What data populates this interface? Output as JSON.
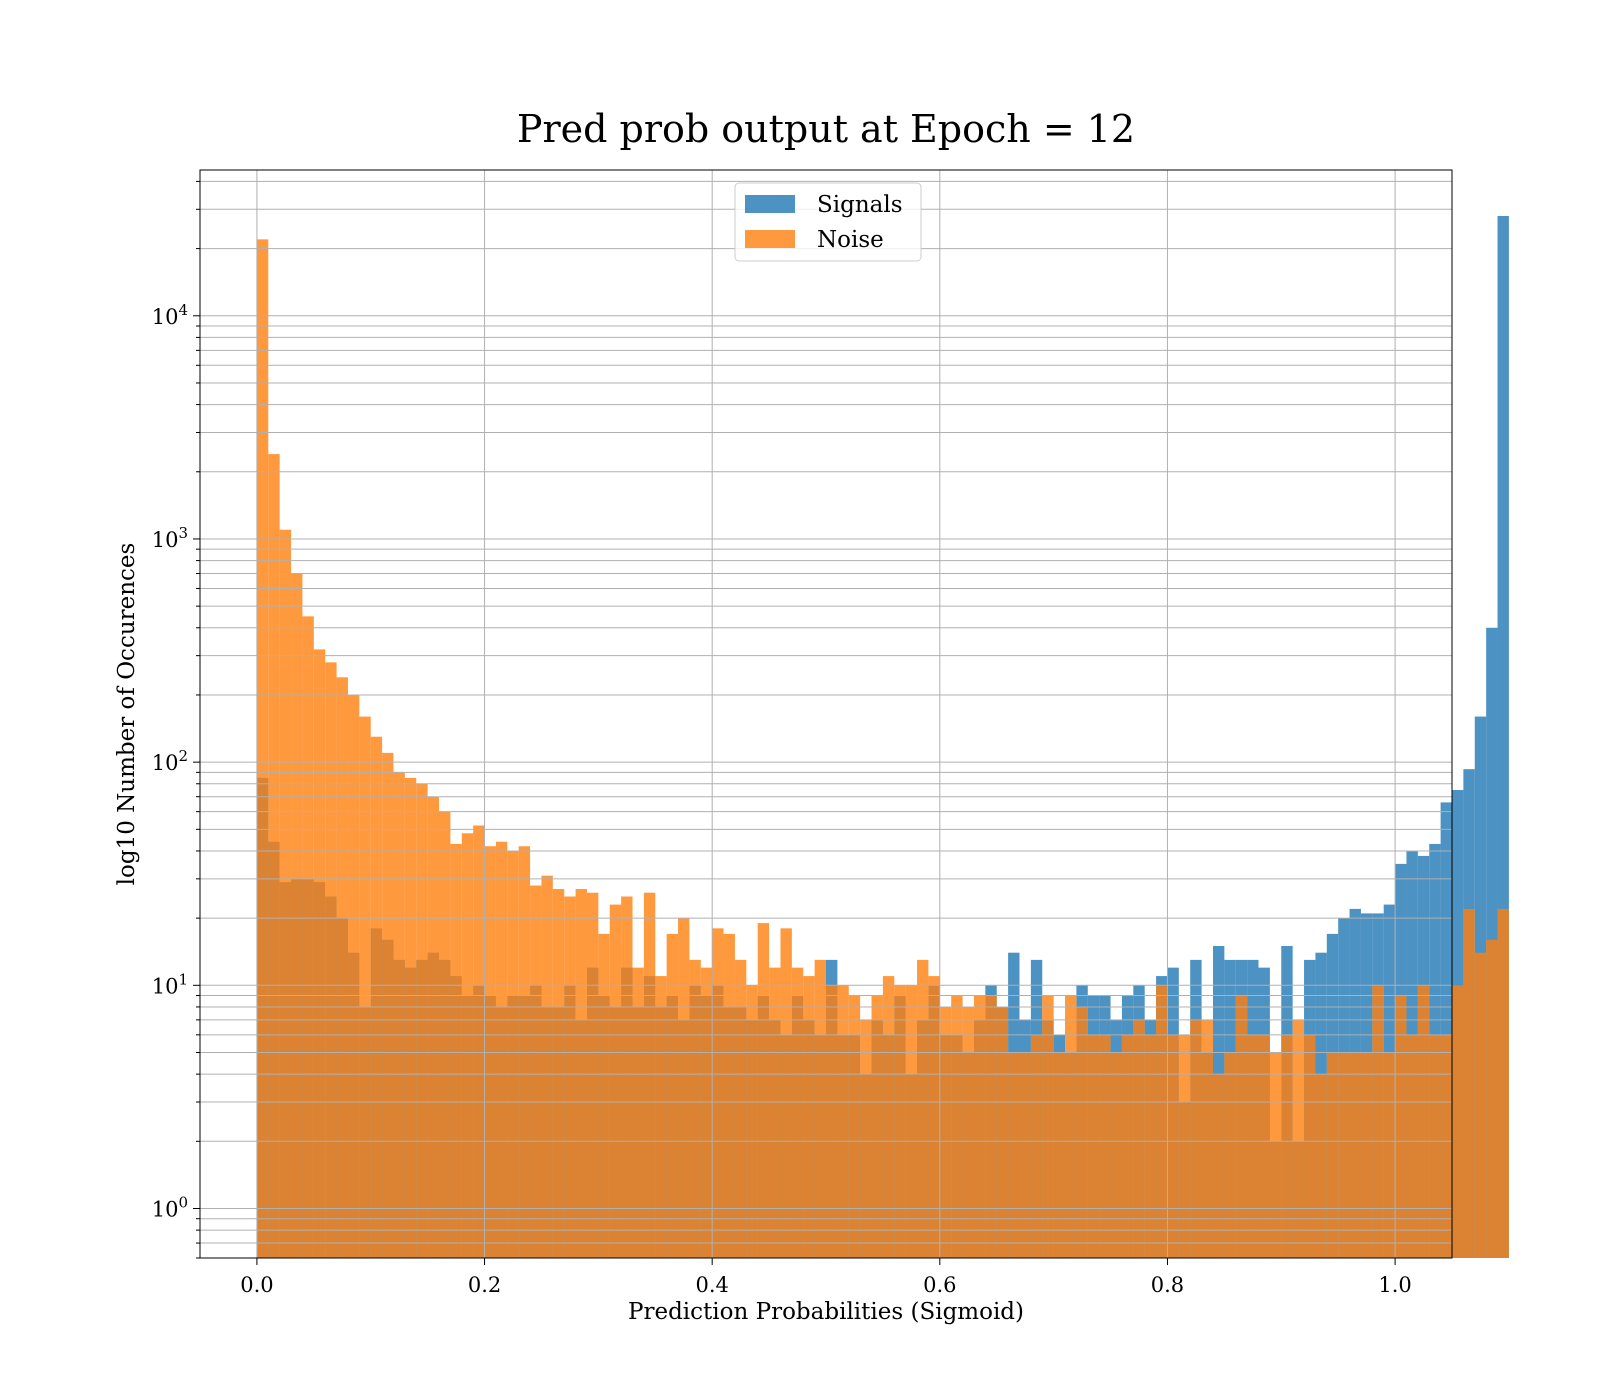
{
  "chart_data": {
    "type": "bar",
    "subtype": "overlaid-histogram",
    "title": "Pred prob output at Epoch = 12",
    "xlabel": "Prediction Probabilities (Sigmoid)",
    "ylabel": "log10 Number of Occurences",
    "xlim": [
      -0.05,
      1.05
    ],
    "ylim": [
      0.6,
      45000
    ],
    "yscale": "log",
    "grid": true,
    "legend_position": "upper center",
    "x_ticks": [
      0.0,
      0.2,
      0.4,
      0.6,
      0.8,
      1.0
    ],
    "x_tick_labels": [
      "0.0",
      "0.2",
      "0.4",
      "0.6",
      "0.8",
      "1.0"
    ],
    "y_ticks": [
      {
        "value": 1,
        "base": "10",
        "exp": "0"
      },
      {
        "value": 10,
        "base": "10",
        "exp": "1"
      },
      {
        "value": 100,
        "base": "10",
        "exp": "2"
      },
      {
        "value": 1000,
        "base": "10",
        "exp": "3"
      },
      {
        "value": 10000,
        "base": "10",
        "exp": "4"
      }
    ],
    "bin_start": 0.0,
    "bin_width": 0.01,
    "series": [
      {
        "name": "Signals",
        "color": "#1f77b4",
        "values": [
          85,
          44,
          29,
          30,
          30,
          29,
          25,
          20,
          14,
          8,
          18,
          16,
          13,
          12,
          13,
          14,
          13,
          11,
          9,
          10,
          9,
          8,
          9,
          9,
          10,
          8,
          8,
          10,
          7,
          12,
          9,
          8,
          12,
          8,
          11,
          8,
          9,
          7,
          10,
          9,
          10,
          8,
          8,
          7,
          9,
          7,
          6,
          9,
          7,
          6,
          13,
          6,
          6,
          4,
          7,
          6,
          9,
          4,
          7,
          10,
          6,
          6,
          5,
          7,
          10,
          8,
          14,
          7,
          13,
          7,
          6,
          5,
          10,
          9,
          9,
          7,
          9,
          10,
          7,
          11,
          12,
          3,
          13,
          5,
          15,
          13,
          13,
          13,
          12,
          2,
          15,
          2,
          13,
          14,
          17,
          20,
          22,
          21,
          21,
          23,
          35,
          40,
          38,
          43,
          66,
          75,
          93,
          160,
          400,
          28000
        ]
      },
      {
        "name": "Noise",
        "color": "#ff7f0e",
        "values": [
          22000,
          2400,
          1100,
          700,
          450,
          320,
          280,
          240,
          200,
          160,
          130,
          110,
          90,
          85,
          80,
          70,
          60,
          43,
          48,
          52,
          42,
          44,
          40,
          42,
          28,
          31,
          27,
          25,
          27,
          26,
          17,
          23,
          25,
          12,
          26,
          11,
          17,
          20,
          13,
          12,
          18,
          17,
          13,
          10,
          19,
          12,
          18,
          12,
          11,
          13,
          10,
          10,
          9,
          7,
          9,
          11,
          10,
          10,
          13,
          11,
          8,
          9,
          8,
          9,
          9,
          8,
          5,
          5,
          6,
          9,
          5,
          9,
          8,
          6,
          6,
          5,
          6,
          7,
          6,
          10,
          6,
          6,
          7,
          7,
          4,
          5,
          9,
          6,
          6,
          5,
          6,
          7,
          6,
          4,
          5,
          5,
          5,
          5,
          10,
          5,
          9,
          6,
          10,
          6,
          6,
          10,
          22,
          14,
          16,
          22
        ]
      }
    ]
  }
}
